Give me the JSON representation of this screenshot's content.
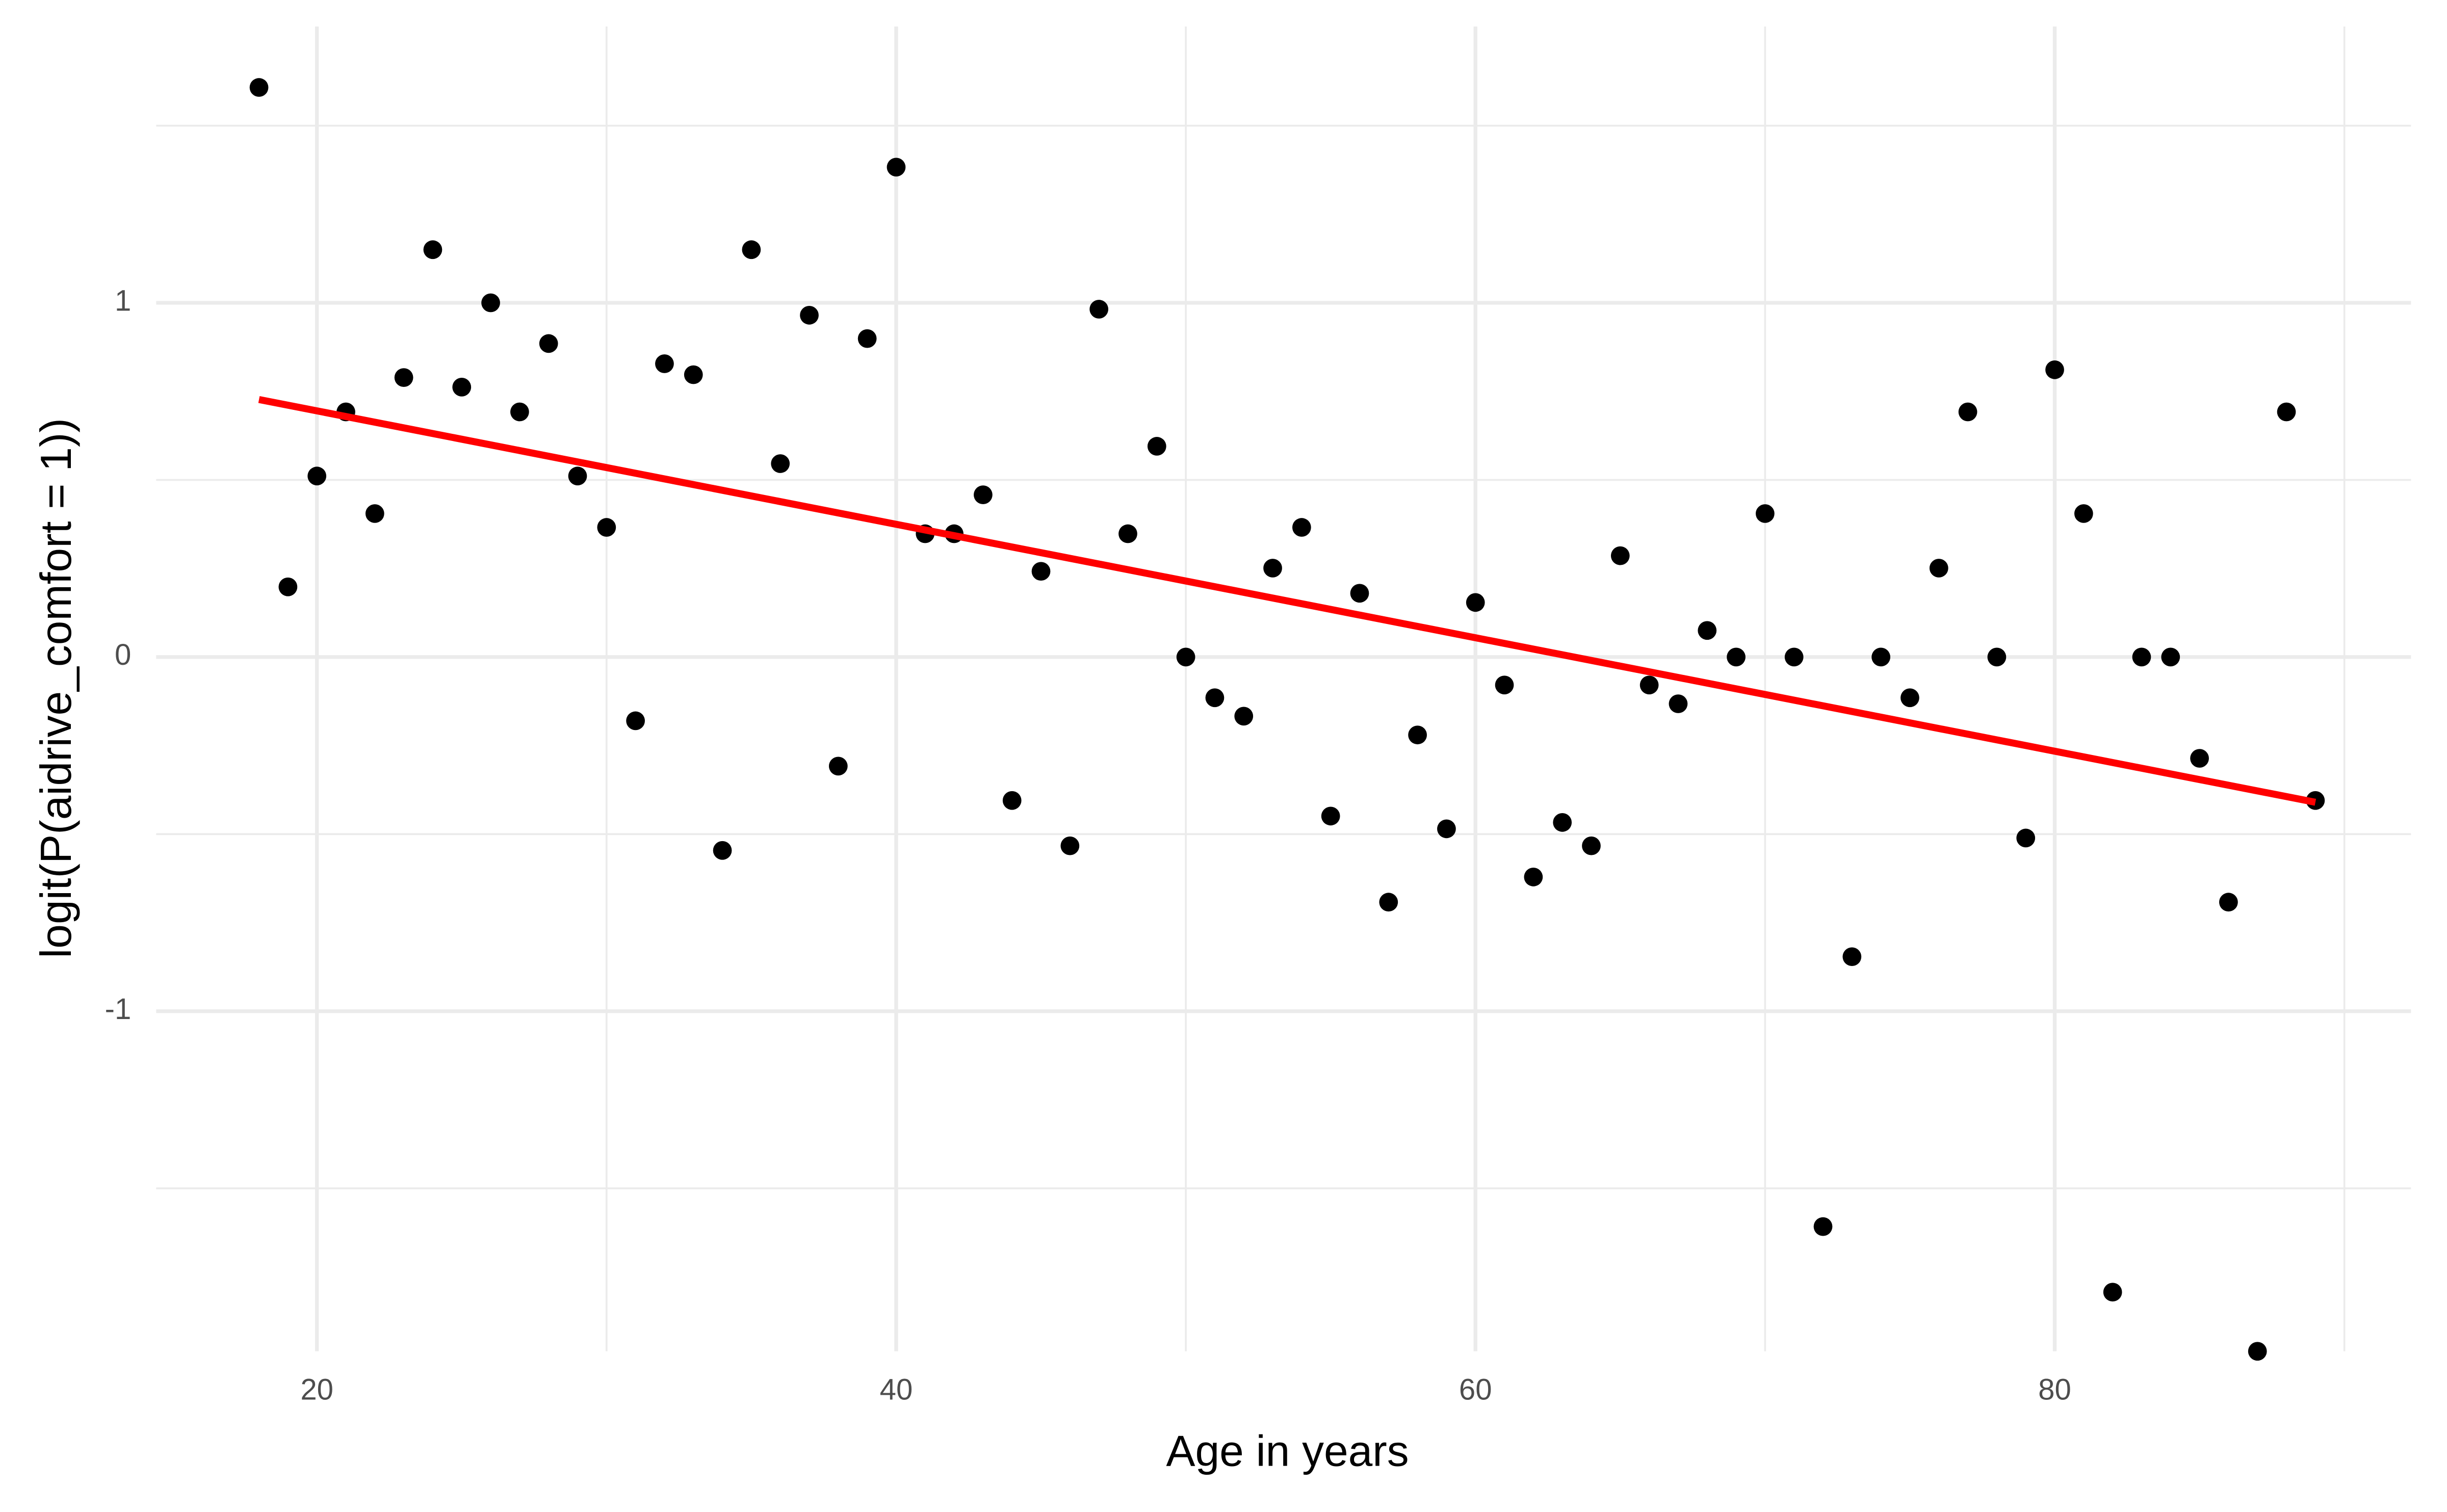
{
  "chart_data": {
    "type": "scatter",
    "x_label": "Age in years",
    "y_label": "logit(P(aidrive_comfort = 1))",
    "xlim": [
      14.45,
      92.3
    ],
    "ylim": [
      -1.96,
      1.78
    ],
    "xticks": [
      20,
      40,
      60,
      80
    ],
    "yticks": [
      -1,
      0,
      1
    ],
    "x_minor_grid": [
      30,
      50,
      70,
      90
    ],
    "y_minor_grid": [
      -1.5,
      -0.5,
      0.5,
      1.5
    ],
    "grid": true,
    "series": [
      {
        "type": "scatter",
        "color": "#000000",
        "x": [
          18,
          19,
          20,
          21,
          22,
          23,
          24,
          25,
          26,
          27,
          28,
          29,
          30,
          31,
          32,
          33,
          34,
          35,
          36,
          37,
          38,
          39,
          40,
          41,
          42,
          43,
          44,
          45,
          46,
          47,
          48,
          49,
          50,
          51,
          52,
          53,
          54,
          55,
          56,
          57,
          58,
          59,
          60,
          61,
          62,
          63,
          64,
          65,
          66,
          67,
          68,
          69,
          70,
          71,
          72,
          73,
          74,
          75,
          76,
          77,
          78,
          79,
          80,
          81,
          82,
          83,
          84,
          85,
          86,
          87,
          88,
          89
        ],
        "values": [
          1.608,
          0.198,
          0.511,
          0.692,
          0.405,
          0.789,
          1.15,
          0.762,
          1.0,
          0.692,
          0.885,
          0.511,
          0.366,
          -0.18,
          0.828,
          0.797,
          -0.546,
          1.15,
          0.546,
          0.965,
          -0.308,
          0.899,
          1.383,
          0.348,
          0.348,
          0.458,
          -0.405,
          0.242,
          -0.533,
          0.982,
          0.348,
          0.595,
          0,
          -0.115,
          -0.167,
          0.251,
          0.366,
          -0.449,
          0.18,
          -0.692,
          -0.22,
          -0.485,
          0.154,
          -0.079,
          -0.621,
          -0.467,
          -0.533,
          0.286,
          -0.079,
          -0.132,
          0.075,
          0,
          0.405,
          0,
          -1.608,
          -0.846,
          0,
          -0.115,
          0.251,
          0.692,
          0,
          -0.511,
          0.811,
          0.405,
          -1.793,
          0,
          0,
          -0.286,
          -0.692,
          -1.96,
          0.692,
          -0.405
        ]
      },
      {
        "type": "line",
        "color": "#ff0000",
        "x": [
          18,
          89
        ],
        "values": [
          0.727,
          -0.41
        ]
      }
    ]
  }
}
